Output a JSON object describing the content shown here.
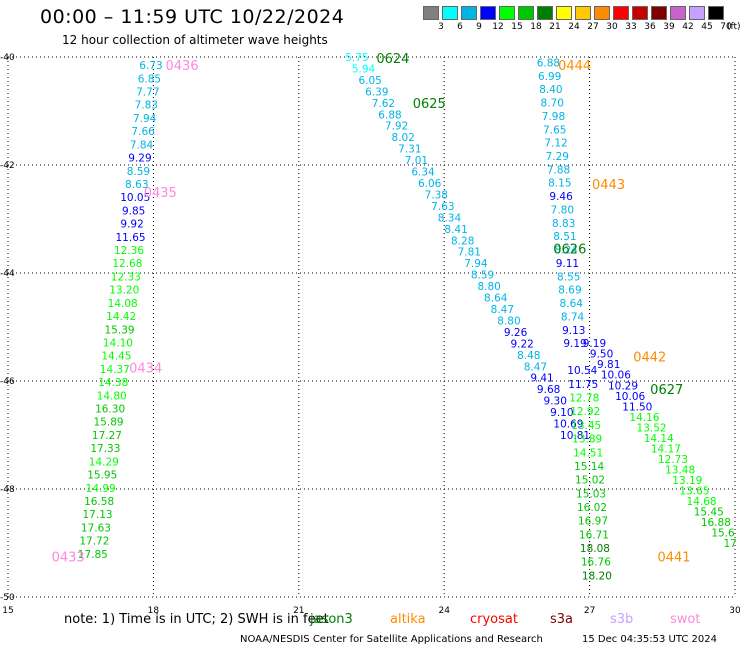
{
  "title": "00:00 – 11:59 UTC 10/22/2024",
  "subtitle": "12 hour collection of altimeter wave heights",
  "legend": {
    "unit": "(ft)",
    "entries": [
      {
        "label": "3",
        "color": "#808080"
      },
      {
        "label": "6",
        "color": "#00ffff"
      },
      {
        "label": "9",
        "color": "#00b4e6"
      },
      {
        "label": "12",
        "color": "#0000ff"
      },
      {
        "label": "15",
        "color": "#00ff00"
      },
      {
        "label": "18",
        "color": "#00c800"
      },
      {
        "label": "21",
        "color": "#008000"
      },
      {
        "label": "24",
        "color": "#ffff00"
      },
      {
        "label": "27",
        "color": "#ffc800"
      },
      {
        "label": "30",
        "color": "#ff8c00"
      },
      {
        "label": "33",
        "color": "#ff0000"
      },
      {
        "label": "36",
        "color": "#c80000"
      },
      {
        "label": "39",
        "color": "#800000"
      },
      {
        "label": "42",
        "color": "#c864c8"
      },
      {
        "label": "45",
        "color": "#c8a0ff"
      },
      {
        "label": "70",
        "color": "#000000"
      }
    ]
  },
  "map": {
    "x_ticks": [
      "15",
      "18",
      "21",
      "24",
      "27",
      "30"
    ],
    "y_ticks": [
      "-40",
      "-42",
      "-44",
      "-46",
      "-48",
      "-50"
    ],
    "x_range": [
      15,
      30
    ],
    "y_range": [
      -50,
      -40
    ],
    "grid": true
  },
  "passes": [
    {
      "label": "0436",
      "color": "#ff88dd",
      "lon": 18.25,
      "lat": -40.15
    },
    {
      "label": "0435",
      "color": "#ff88dd",
      "lon": 17.8,
      "lat": -42.5
    },
    {
      "label": "0434",
      "color": "#ff88dd",
      "lon": 17.5,
      "lat": -45.75
    },
    {
      "label": "0433",
      "color": "#ff88dd",
      "lon": 15.9,
      "lat": -49.25
    },
    {
      "label": "0624",
      "color": "#008000",
      "lon": 22.6,
      "lat": -40.02
    },
    {
      "label": "0625",
      "color": "#008000",
      "lon": 23.35,
      "lat": -40.85
    },
    {
      "label": "0626",
      "color": "#008000",
      "lon": 26.25,
      "lat": -43.55
    },
    {
      "label": "0627",
      "color": "#008000",
      "lon": 28.25,
      "lat": -46.15
    },
    {
      "label": "0444",
      "color": "#ff8c00",
      "lon": 26.35,
      "lat": -40.15
    },
    {
      "label": "0443",
      "color": "#ff8c00",
      "lon": 27.05,
      "lat": -42.35
    },
    {
      "label": "0442",
      "color": "#ff8c00",
      "lon": 27.9,
      "lat": -45.55
    },
    {
      "label": "0441",
      "color": "#ff8c00",
      "lon": 28.4,
      "lat": -49.25
    }
  ],
  "tracks": [
    {
      "name": "track-0436",
      "lon_start": 17.95,
      "lon_end": 16.75,
      "lat_start": -40.15,
      "lat_end": -49.2,
      "values": [
        "6.73",
        "6.85",
        "7.77",
        "7.83",
        "7.94",
        "7.66",
        "7.84",
        "9.29",
        "8.59",
        "8.63",
        "10.05",
        "9.85",
        "9.92",
        "11.65",
        "12.36",
        "12.68",
        "12.33",
        "13.20",
        "14.08",
        "14.42",
        "15.39",
        "14.10",
        "14.45",
        "14.37",
        "14.38",
        "14.80",
        "16.30",
        "15.89",
        "17.27",
        "17.33",
        "14.29",
        "15.95",
        "14.99",
        "16.58",
        "17.13",
        "17.63",
        "17.72",
        "17.85"
      ]
    },
    {
      "name": "track-0624",
      "lon_start": 22.2,
      "lon_end": 26.7,
      "lat_start": -40.0,
      "lat_end": -47.0,
      "values": [
        "5.75",
        "5.94",
        "6.05",
        "6.39",
        "7.62",
        "6.88",
        "7.92",
        "8.02",
        "7.31",
        "7.01",
        "6.34",
        "6.06",
        "7.38",
        "7.63",
        "8.34",
        "8.41",
        "8.28",
        "7.81",
        "7.94",
        "8.59",
        "8.80",
        "8.64",
        "8.47",
        "8.80",
        "9.26",
        "9.22",
        "8.48",
        "8.47",
        "9.41",
        "9.68",
        "9.30",
        "9.10",
        "10.69",
        "10.81"
      ]
    },
    {
      "name": "track-0444",
      "lon_start": 26.15,
      "lon_end": 26.7,
      "lat_start": -40.1,
      "lat_end": -45.3,
      "values": [
        "6.88",
        "6.99",
        "8.40",
        "8.70",
        "7.98",
        "7.65",
        "7.12",
        "7.29",
        "7.88",
        "8.15",
        "9.46",
        "7.80",
        "8.83",
        "8.51",
        "8.24",
        "9.11",
        "8.55",
        "8.69",
        "8.64",
        "8.74",
        "9.13",
        "9.19"
      ]
    },
    {
      "name": "track-0627",
      "lon_start": 27.1,
      "lon_end": 29.9,
      "lat_start": -45.3,
      "lat_end": -49.0,
      "values": [
        "9.19",
        "9.50",
        "9.81",
        "10.06",
        "10.29",
        "10.06",
        "11.50",
        "14.16",
        "13.52",
        "14.14",
        "14.17",
        "12.73",
        "13.48",
        "13.19",
        "13.65",
        "14.68",
        "15.45",
        "16.88",
        "15.6",
        "17"
      ]
    },
    {
      "name": "track-0441",
      "lon_start": 26.85,
      "lon_end": 27.15,
      "lat_start": -45.8,
      "lat_end": -49.6,
      "values": [
        "10.54",
        "11.75",
        "12.78",
        "12.92",
        "13.45",
        "13.89",
        "14.51",
        "15.14",
        "15.02",
        "15.03",
        "16.02",
        "16.97",
        "16.71",
        "18.08",
        "16.76",
        "18.20"
      ]
    }
  ],
  "note": "note: 1) Time is in UTC; 2) SWH is in feet",
  "satellites": [
    {
      "name": "jason3",
      "color": "#008000"
    },
    {
      "name": "altika",
      "color": "#ff8c00"
    },
    {
      "name": "cryosat",
      "color": "#ff0000"
    },
    {
      "name": "s3a",
      "color": "#800000"
    },
    {
      "name": "s3b",
      "color": "#c8a0ff"
    },
    {
      "name": "swot",
      "color": "#ff88dd"
    }
  ],
  "footer_left": "NOAA/NESDIS Center for Satellite Applications and Research",
  "footer_right": "15 Dec 04:35:53 UTC 2024"
}
